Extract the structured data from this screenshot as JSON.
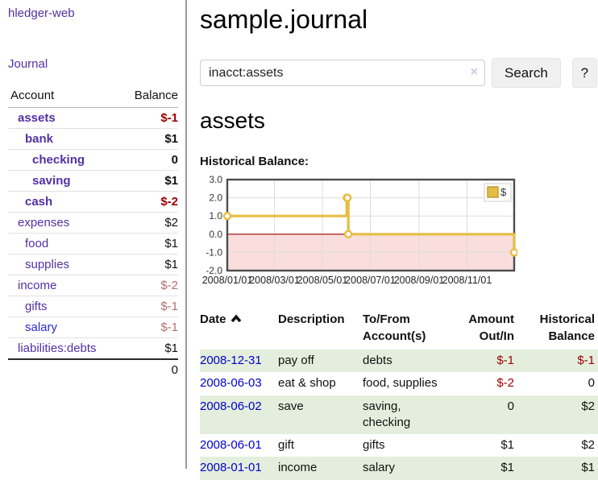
{
  "app": {
    "title": "hledger-web"
  },
  "colors": {
    "purple": "#5330a5",
    "blue": "#0000cc",
    "blue_alt": "#2a2ad0",
    "negative_strong": "#a00000",
    "negative_muted": "#b96c6c",
    "row_green": "#e3efdc",
    "divider": "#9a9a9a",
    "chart_gold": "#e5bd44",
    "chart_gold_dark": "#bd9a2e"
  },
  "sidebar": {
    "journal_link": "Journal",
    "table": {
      "headers": [
        "Account",
        "Balance"
      ],
      "rows": [
        {
          "account": "assets",
          "balance": "$-1",
          "depth": 1,
          "current": true,
          "neg": "strong"
        },
        {
          "account": "bank",
          "balance": "$1",
          "depth": 2,
          "current": true,
          "neg": ""
        },
        {
          "account": "checking",
          "balance": "0",
          "depth": 3,
          "current": true,
          "neg": ""
        },
        {
          "account": "saving",
          "balance": "$1",
          "depth": 3,
          "current": true,
          "neg": ""
        },
        {
          "account": "cash",
          "balance": "$-2",
          "depth": 2,
          "current": true,
          "neg": "strong"
        },
        {
          "account": "expenses",
          "balance": "$2",
          "depth": 1,
          "current": false,
          "neg": ""
        },
        {
          "account": "food",
          "balance": "$1",
          "depth": 2,
          "current": false,
          "neg": ""
        },
        {
          "account": "supplies",
          "balance": "$1",
          "depth": 2,
          "current": false,
          "neg": ""
        },
        {
          "account": "income",
          "balance": "$-2",
          "depth": 1,
          "current": false,
          "neg": "muted"
        },
        {
          "account": "gifts",
          "balance": "$-1",
          "depth": 2,
          "current": false,
          "neg": "muted"
        },
        {
          "account": "salary",
          "balance": "$-1",
          "depth": 2,
          "current": false,
          "neg": "muted",
          "link_style": "blue"
        },
        {
          "account": "liabilities:debts",
          "balance": "$1",
          "depth": 1,
          "current": false,
          "neg": ""
        }
      ],
      "total": "0"
    }
  },
  "main": {
    "title": "sample.journal",
    "search": {
      "value": "inacct:assets",
      "clear_icon": "×",
      "button_label": "Search",
      "help_label": "?"
    },
    "section_title": "assets",
    "chart_label": "Historical Balance:",
    "register": {
      "headers": [
        {
          "lines": [
            "Date"
          ],
          "align": "left",
          "sorted": "asc"
        },
        {
          "lines": [
            "Description"
          ],
          "align": "left"
        },
        {
          "lines": [
            "To/From",
            "Account(s)"
          ],
          "align": "left"
        },
        {
          "lines": [
            "Amount",
            "Out/In"
          ],
          "align": "right"
        },
        {
          "lines": [
            "Historical",
            "Balance"
          ],
          "align": "right"
        }
      ],
      "rows": [
        {
          "date": "2008-12-31",
          "description": "pay off",
          "accounts": "debts",
          "amount": "$-1",
          "amount_neg": true,
          "balance": "$-1",
          "balance_neg": true,
          "green": true
        },
        {
          "date": "2008-06-03",
          "description": "eat & shop",
          "accounts": "food, supplies",
          "amount": "$-2",
          "amount_neg": true,
          "balance": "0",
          "balance_neg": false,
          "green": false
        },
        {
          "date": "2008-06-02",
          "description": "save",
          "accounts": "saving, checking",
          "amount": "0",
          "amount_neg": false,
          "balance": "$2",
          "balance_neg": false,
          "green": true
        },
        {
          "date": "2008-06-01",
          "description": "gift",
          "accounts": "gifts",
          "amount": "$1",
          "amount_neg": false,
          "balance": "$2",
          "balance_neg": false,
          "green": false
        },
        {
          "date": "2008-01-01",
          "description": "income",
          "accounts": "salary",
          "amount": "$1",
          "amount_neg": false,
          "balance": "$1",
          "balance_neg": false,
          "green": true
        }
      ]
    }
  },
  "chart_data": {
    "type": "line",
    "step": true,
    "title": "Historical Balance:",
    "series": [
      {
        "name": "$",
        "color": "#e5bd44",
        "points": [
          [
            "2008-01-01",
            1
          ],
          [
            "2008-06-01",
            2
          ],
          [
            "2008-06-02",
            2
          ],
          [
            "2008-06-03",
            0
          ],
          [
            "2008-12-31",
            -1
          ]
        ]
      }
    ],
    "x_range": [
      "2008-01-01",
      "2008-12-31"
    ],
    "x_ticks": [
      {
        "date": "2008-01-01",
        "label": "2008/01/01"
      },
      {
        "date": "2008-03-01",
        "label": "2008/03/01"
      },
      {
        "date": "2008-05-01",
        "label": "2008/05/01"
      },
      {
        "date": "2008-07-01",
        "label": "2008/07/01"
      },
      {
        "date": "2008-09-01",
        "label": "2008/09/01"
      },
      {
        "date": "2008-11-01",
        "label": "2008/11/01"
      }
    ],
    "y_ticks": [
      "3.0",
      "2.0",
      "1.0",
      "0.0",
      "-1.0",
      "-2.0"
    ],
    "ylim": [
      -2,
      3
    ],
    "legend": {
      "label": "$",
      "position": "top-right"
    },
    "grid": true,
    "negative_fill": "#fadddd",
    "zero_line_color": "#990000",
    "border_color": "#4d4d4d",
    "grid_color": "#dddddd"
  }
}
